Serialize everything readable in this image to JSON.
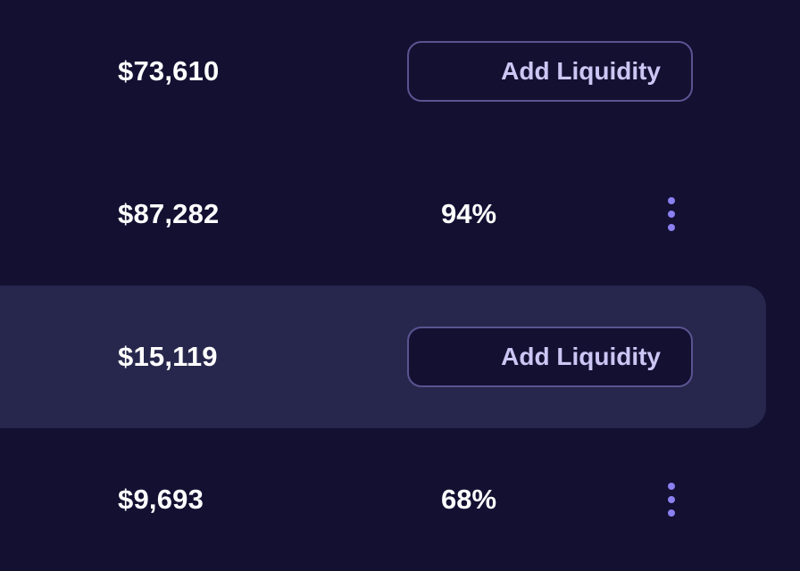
{
  "rows": [
    {
      "amount": "$73,610",
      "action_label": "Add Liquidity"
    },
    {
      "amount": "$87,282",
      "percent": "94%",
      "menu_icon": "more-vertical-icon"
    },
    {
      "amount": "$15,119",
      "action_label": "Add Liquidity",
      "highlighted": true
    },
    {
      "amount": "$9,693",
      "percent": "68%",
      "menu_icon": "more-vertical-icon"
    }
  ],
  "colors": {
    "background": "#131032",
    "row_highlight": "#27274d",
    "button_border": "#5a5490",
    "button_text": "#cdc6f4",
    "accent": "#8b80f0",
    "text": "#ffffff"
  }
}
